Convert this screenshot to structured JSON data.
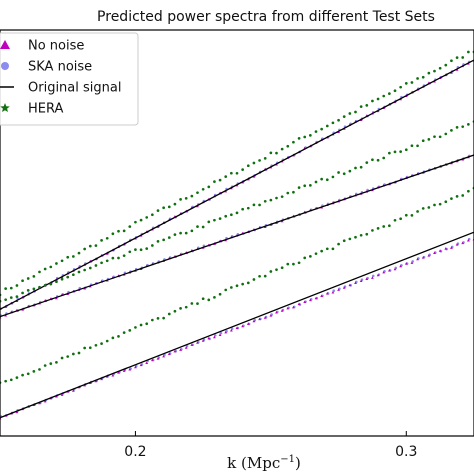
{
  "chart_data": {
    "type": "scatter",
    "title": "Predicted power spectra from different Test Sets",
    "xlabel": "k (Mpc",
    "xlabel_sup": "−1",
    "xlabel_close": ")",
    "ylabel": "",
    "xlim": [
      0.15,
      0.325
    ],
    "ylim": [
      0,
      100
    ],
    "x_ticks": [
      0.2,
      0.3
    ],
    "x_tick_labels": [
      "0.2",
      "0.3"
    ],
    "grid": false,
    "legend": {
      "placement": "top-left",
      "entries": [
        {
          "label": "No noise",
          "marker": "triangle",
          "color": "#bf00bf"
        },
        {
          "label": "SKA noise",
          "marker": "circle",
          "color": "#8c8cf0"
        },
        {
          "label": "Original signal",
          "marker": "line",
          "color": "#000000"
        },
        {
          "label": "HERA",
          "marker": "star",
          "color": "#107010"
        }
      ]
    },
    "groups": [
      {
        "original_signal": {
          "start": [
            0.15,
            31.2
          ],
          "end": [
            0.325,
            92.6
          ]
        },
        "no_noise": {
          "start": [
            0.15,
            31.2
          ],
          "end": [
            0.325,
            92.6
          ]
        },
        "ska_noise": {
          "start": [
            0.15,
            31.4
          ],
          "end": [
            0.325,
            92.8
          ]
        },
        "hera": {
          "start": [
            0.15,
            35.2
          ],
          "end": [
            0.325,
            95.0
          ]
        }
      },
      {
        "original_signal": {
          "start": [
            0.15,
            29.4
          ],
          "end": [
            0.325,
            69.2
          ]
        },
        "no_noise": {
          "start": [
            0.15,
            29.4
          ],
          "end": [
            0.325,
            69.2
          ]
        },
        "ska_noise": {
          "start": [
            0.15,
            29.6
          ],
          "end": [
            0.325,
            69.4
          ]
        },
        "hera": {
          "start": [
            0.15,
            32.8
          ],
          "end": [
            0.325,
            77.2
          ]
        }
      },
      {
        "original_signal": {
          "start": [
            0.15,
            4.5
          ],
          "end": [
            0.325,
            50.2
          ]
        },
        "no_noise": {
          "start": [
            0.15,
            4.5
          ],
          "end": [
            0.325,
            48.6
          ]
        },
        "ska_noise": {
          "start": [
            0.15,
            4.7
          ],
          "end": [
            0.325,
            48.8
          ]
        },
        "hera": {
          "start": [
            0.15,
            12.8
          ],
          "end": [
            0.325,
            60.8
          ]
        }
      }
    ]
  }
}
